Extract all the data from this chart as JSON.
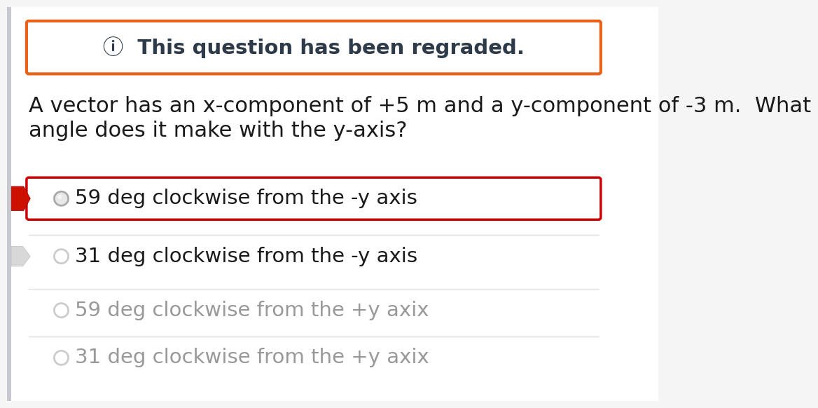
{
  "background_color": "#f5f5f5",
  "left_strip_color": "#e0e0e0",
  "regraded_box": {
    "text": "ⓘ  This question has been regraded.",
    "border_color": "#e8621a",
    "bg_color": "#ffffff",
    "text_color": "#2d3a4a",
    "fontsize": 21,
    "bold": true
  },
  "question_text_line1": "A vector has an x-component of +5 m and a y-component of -3 m.  What",
  "question_text_line2": "angle does it make with the y-axis?",
  "question_fontsize": 22,
  "question_color": "#1a1a1a",
  "options": [
    {
      "text": "59 deg clockwise from the -y axis",
      "highlighted": true,
      "border_color": "#cc0000",
      "bg_color": "#ffffff",
      "text_color": "#1a1a1a",
      "fontsize": 21,
      "has_left_arrow": true,
      "arrow_color": "#cc1100",
      "radio_color": "#aaaaaa",
      "radio_fill": "#e8e8e8"
    },
    {
      "text": "31 deg clockwise from the -y axis",
      "highlighted": false,
      "border_color": null,
      "bg_color": "#ffffff",
      "text_color": "#1a1a1a",
      "fontsize": 21,
      "has_left_arrow": true,
      "arrow_color": "#cccccc",
      "radio_color": "#cccccc",
      "radio_fill": "#ffffff"
    },
    {
      "text": "59 deg clockwise from the +y axix",
      "highlighted": false,
      "border_color": null,
      "bg_color": "#ffffff",
      "text_color": "#999999",
      "fontsize": 21,
      "has_left_arrow": false,
      "arrow_color": null,
      "radio_color": "#cccccc",
      "radio_fill": "#ffffff"
    },
    {
      "text": "31 deg clockwise from the +y axix",
      "highlighted": false,
      "border_color": null,
      "bg_color": "#ffffff",
      "text_color": "#999999",
      "fontsize": 21,
      "has_left_arrow": false,
      "arrow_color": null,
      "radio_color": "#cccccc",
      "radio_fill": "#ffffff"
    }
  ]
}
